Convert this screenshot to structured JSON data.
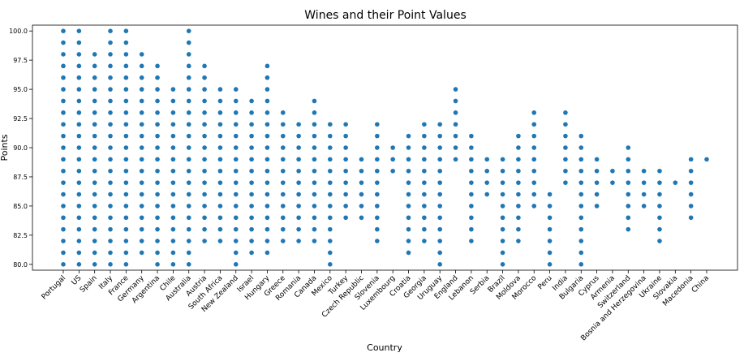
{
  "chart_data": {
    "type": "scatter",
    "title": "Wines and their Point Values",
    "xlabel": "Country",
    "ylabel": "Points",
    "ylim": [
      79.5,
      100.5
    ],
    "yticks": [
      "80.0",
      "82.5",
      "85.0",
      "87.5",
      "90.0",
      "92.5",
      "95.0",
      "97.5",
      "100.0"
    ],
    "grid": false,
    "marker_color": "#1f77b4",
    "categories": [
      "Portugal",
      "US",
      "Spain",
      "Italy",
      "France",
      "Germany",
      "Argentina",
      "Chile",
      "Australia",
      "Austria",
      "South Africa",
      "New Zealand",
      "Israel",
      "Hungary",
      "Greece",
      "Romania",
      "Canada",
      "Mexico",
      "Turkey",
      "Czech Republic",
      "Slovenia",
      "Luxembourg",
      "Croatia",
      "Georgia",
      "Uruguay",
      "England",
      "Lebanon",
      "Serbia",
      "Brazil",
      "Moldova",
      "Morocco",
      "Peru",
      "India",
      "Bulgaria",
      "Cyprus",
      "Armenia",
      "Switzerland",
      "Bosnia and Herzegovina",
      "Ukraine",
      "Slovakia",
      "Macedonia",
      "China"
    ],
    "points": [
      [
        80,
        100
      ],
      [
        80,
        100
      ],
      [
        80,
        98
      ],
      [
        80,
        100
      ],
      [
        80,
        100
      ],
      [
        81,
        98
      ],
      [
        80,
        97
      ],
      [
        80,
        95
      ],
      [
        80,
        100
      ],
      [
        82,
        97
      ],
      [
        82,
        95
      ],
      [
        80,
        95
      ],
      [
        81,
        94
      ],
      [
        81,
        97
      ],
      [
        82,
        93
      ],
      [
        82,
        92
      ],
      [
        82,
        94
      ],
      [
        80,
        92
      ],
      [
        84,
        92
      ],
      [
        84,
        89
      ],
      [
        82,
        92
      ],
      [
        88,
        90
      ],
      [
        81,
        91
      ],
      [
        82,
        92
      ],
      [
        80,
        92
      ],
      [
        89,
        95
      ],
      [
        82,
        91
      ],
      [
        86,
        89
      ],
      [
        80,
        89
      ],
      [
        82,
        91
      ],
      [
        85,
        93
      ],
      [
        80,
        86
      ],
      [
        87,
        93
      ],
      [
        80,
        91
      ],
      [
        85,
        89
      ],
      [
        87,
        88
      ],
      [
        83,
        90
      ],
      [
        85,
        88
      ],
      [
        82,
        88
      ],
      [
        87,
        87
      ],
      [
        84,
        89
      ],
      [
        89,
        89
      ]
    ],
    "outlier_low": {
      "Mexico": 80,
      "Uruguay": 80,
      "Brazil": 80,
      "Peru": 80,
      "Bulgaria": 80,
      "Portugal": 80
    },
    "extra_points": {
      "Turkey": [
        86,
        87,
        88,
        89,
        90,
        91,
        92,
        84,
        85
      ],
      "Czech Republic": [
        84,
        85,
        87,
        88,
        89
      ]
    }
  }
}
